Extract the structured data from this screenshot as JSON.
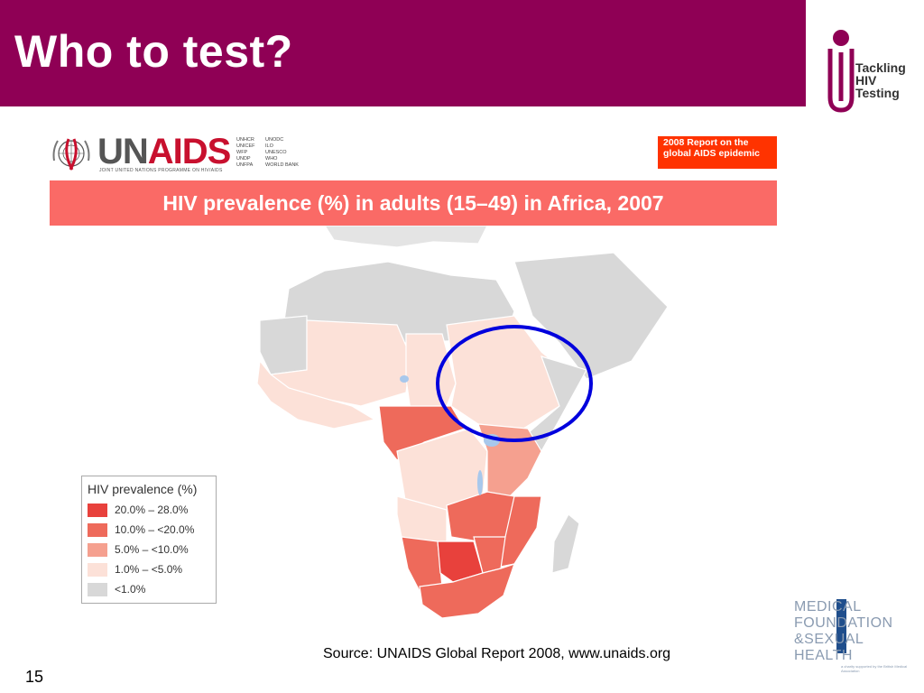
{
  "slide": {
    "title": "Who to test?",
    "number": "15",
    "source": "Source: UNAIDS Global Report 2008, www.unaids.org",
    "header_color": "#8f0055"
  },
  "thiv_logo": {
    "lines": [
      "Tackling",
      "HIV",
      "Testing"
    ],
    "color": "#8f0055"
  },
  "unaids_logo": {
    "wordmark_prefix": "UN",
    "wordmark_suffix": "AIDS",
    "tagline": "JOINT UNITED NATIONS PROGRAMME ON HIV/AIDS",
    "cosponsors_col1": [
      "UNHCR",
      "UNICEF",
      "WFP",
      "UNDP",
      "UNFPA"
    ],
    "cosponsors_col2": [
      "UNODC",
      "ILO",
      "UNESCO",
      "WHO",
      "WORLD BANK"
    ]
  },
  "report_badge": {
    "text": "2008 Report on the global AIDS epidemic",
    "color": "#ff3300"
  },
  "map": {
    "heading": "HIV prevalence (%) in adults (15–49) in Africa, 2007",
    "heading_bg": "#fa6a66",
    "highlight_circle_color": "#0000dd",
    "legend": {
      "title": "HIV prevalence (%)",
      "items": [
        {
          "label": "20.0% – 28.0%",
          "color": "#e8413c"
        },
        {
          "label": "10.0% – <20.0%",
          "color": "#ee6a5b"
        },
        {
          "label": "5.0% – <10.0%",
          "color": "#f5a08f"
        },
        {
          "label": "1.0% – <5.0%",
          "color": "#fce1d8"
        },
        {
          "label": "<1.0%",
          "color": "#d8d8d8"
        }
      ]
    }
  },
  "mfsh_logo": {
    "lines": [
      "MEDICAL",
      "FOUNDATION",
      "&SEXUAL",
      "HEALTH"
    ],
    "small_print": "a charity supported by the British Medical Association"
  }
}
